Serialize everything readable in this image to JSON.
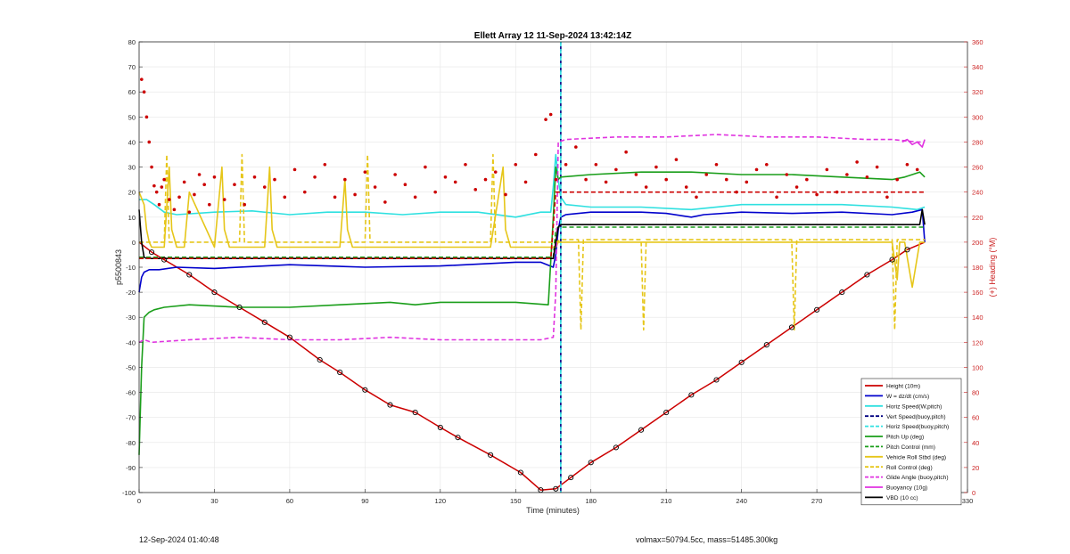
{
  "chart_data": {
    "type": "line",
    "title": "Ellett Array 12 11-Sep-2024 13:42:14Z",
    "xlabel": "Time (minutes)",
    "ylabel": "p5500843",
    "y2label": "(+) Heading (°M)",
    "xlim": [
      0,
      330
    ],
    "ylim": [
      -100,
      80
    ],
    "y2lim": [
      0,
      360
    ],
    "xticks": [
      0,
      30,
      60,
      90,
      120,
      150,
      180,
      210,
      240,
      270,
      300,
      330
    ],
    "yticks": [
      -100,
      -90,
      -80,
      -70,
      -60,
      -50,
      -40,
      -30,
      -20,
      -10,
      0,
      10,
      20,
      30,
      40,
      50,
      60,
      70,
      80
    ],
    "y2ticks": [
      0,
      20,
      40,
      60,
      80,
      100,
      120,
      140,
      160,
      180,
      200,
      220,
      240,
      260,
      280,
      300,
      320,
      340,
      360
    ],
    "grid": true,
    "legend_position": "bottom-right",
    "colors": {
      "red": "#cc0000",
      "blue": "#0000cc",
      "cyan": "#2fe0e0",
      "navy": "#000080",
      "green": "#1a9e1a",
      "yellow": "#e6c619",
      "magenta": "#e033e0",
      "black": "#000000",
      "right_axis": "#cc2222"
    },
    "series": [
      {
        "name": "Height (10m)",
        "color": "#cc0000",
        "style": "solid",
        "axis": "left",
        "x": [
          0,
          5,
          10,
          20,
          30,
          40,
          50,
          60,
          72,
          80,
          90,
          100,
          110,
          120,
          127,
          140,
          152,
          160,
          166,
          172,
          180,
          190,
          200,
          210,
          220,
          230,
          240,
          250,
          260,
          270,
          280,
          290,
          300,
          306,
          313
        ],
        "y": [
          0,
          -4,
          -7,
          -13,
          -20,
          -26,
          -32,
          -38,
          -47,
          -52,
          -59,
          -65,
          -68,
          -74,
          -78,
          -85,
          -92,
          -99,
          -98.5,
          -94,
          -88,
          -82,
          -75,
          -68,
          -61,
          -55,
          -48,
          -41,
          -34,
          -27,
          -20,
          -13,
          -7,
          -3,
          0
        ]
      },
      {
        "name": "W = dz/dt (cm/s)",
        "color": "#0000cc",
        "style": "solid",
        "axis": "left",
        "x": [
          0,
          1,
          2,
          4,
          8,
          15,
          30,
          60,
          90,
          120,
          150,
          160,
          165,
          166,
          167,
          168,
          170,
          180,
          200,
          210,
          220,
          225,
          240,
          260,
          280,
          300,
          308,
          312,
          313
        ],
        "y": [
          -20,
          -14,
          -12,
          -11,
          -11,
          -10,
          -10.5,
          -9,
          -10,
          -9.5,
          -8,
          -8,
          -10,
          -5,
          5,
          10,
          11,
          12,
          12,
          11.5,
          10,
          11,
          12,
          11.5,
          12,
          11,
          12,
          13,
          0
        ]
      },
      {
        "name": "Horiz Speed(W,pitch)",
        "color": "#2fe0e0",
        "style": "solid",
        "axis": "left",
        "x": [
          0,
          3,
          6,
          10,
          15,
          30,
          45,
          60,
          75,
          90,
          105,
          120,
          135,
          150,
          160,
          164,
          165,
          166,
          167,
          168,
          170,
          180,
          200,
          220,
          240,
          260,
          280,
          300,
          310,
          313
        ],
        "y": [
          17,
          17,
          15,
          12,
          11,
          12,
          12.5,
          11,
          12,
          12,
          11,
          12,
          12,
          10,
          12,
          12,
          22,
          35,
          25,
          18,
          15,
          14,
          14,
          13,
          15,
          15,
          15,
          14,
          13,
          14
        ]
      },
      {
        "name": "Vert Speed(buoy,pitch)",
        "color": "#000080",
        "style": "dashed",
        "axis": "left",
        "x": [
          168,
          168
        ],
        "y": [
          -100,
          80
        ]
      },
      {
        "name": "Horiz Speed(buoy,pitch)",
        "color": "#2fe0e0",
        "style": "dashed",
        "axis": "left",
        "x": [
          168,
          168
        ],
        "y": [
          80,
          -100
        ]
      },
      {
        "name": "Pitch Up (deg)",
        "color": "#1a9e1a",
        "style": "solid",
        "axis": "left",
        "x": [
          0,
          1,
          2,
          4,
          6,
          10,
          20,
          40,
          60,
          80,
          100,
          110,
          120,
          150,
          163,
          165,
          166,
          167,
          168,
          180,
          200,
          220,
          240,
          260,
          280,
          300,
          305,
          311,
          313
        ],
        "y": [
          -85,
          -50,
          -30,
          -28,
          -27,
          -26,
          -25,
          -26,
          -26,
          -25,
          -24,
          -25,
          -24,
          -24,
          -25,
          10,
          30,
          25,
          26,
          27,
          28,
          28,
          27,
          27,
          26,
          25,
          26,
          28,
          26
        ]
      },
      {
        "name": "Pitch Control (mm)",
        "color": "#1a9e1a",
        "style": "dashed",
        "axis": "left",
        "x": [
          0,
          165,
          166,
          167,
          200,
          240,
          270,
          313
        ],
        "y": [
          -6,
          -6,
          5,
          6,
          6,
          6,
          6,
          6
        ]
      },
      {
        "name": "Vehicle Roll Stbd (deg)",
        "color": "#e6c619",
        "style": "solid",
        "axis": "left",
        "x": [
          0,
          2,
          3,
          4,
          5,
          10,
          12,
          13,
          15,
          18,
          20,
          30,
          33,
          34,
          36,
          40,
          50,
          52,
          53,
          55,
          60,
          80,
          82,
          83,
          85,
          90,
          120,
          140,
          145,
          146,
          148,
          150,
          166,
          167,
          170,
          180,
          190,
          200,
          210,
          230,
          250,
          270,
          290,
          300,
          302,
          303,
          305,
          308,
          311,
          313
        ],
        "y": [
          20,
          15,
          5,
          0,
          -2,
          -2,
          30,
          5,
          -2,
          -2,
          20,
          -2,
          30,
          5,
          -2,
          -2,
          -2,
          30,
          5,
          -2,
          -2,
          -2,
          25,
          5,
          -2,
          -2,
          -2,
          -2,
          30,
          5,
          -2,
          -2,
          -2,
          0,
          0,
          0,
          0,
          0,
          0,
          0,
          0,
          0,
          0,
          0,
          -15,
          0,
          0,
          -18,
          0,
          0
        ]
      },
      {
        "name": "Roll Control (deg)",
        "color": "#e6c619",
        "style": "dashed",
        "axis": "left",
        "x": [
          0,
          10,
          11,
          12,
          40,
          41,
          42,
          90,
          91,
          92,
          140,
          141,
          142,
          166,
          168,
          175,
          176,
          177,
          200,
          201,
          202,
          260,
          261,
          262,
          300,
          301,
          302,
          313
        ],
        "y": [
          0,
          0,
          35,
          0,
          0,
          35,
          0,
          0,
          35,
          0,
          0,
          35,
          0,
          0,
          1,
          1,
          -35,
          1,
          1,
          -35,
          1,
          1,
          -35,
          1,
          1,
          -35,
          1,
          1
        ]
      },
      {
        "name": "Glide Angle (buoy,pitch)",
        "color": "#e033e0",
        "style": "dashed",
        "axis": "left",
        "x": [
          0,
          2,
          5,
          20,
          40,
          60,
          80,
          100,
          120,
          140,
          160,
          165,
          166,
          167,
          170,
          190,
          210,
          230,
          250,
          270,
          290,
          300,
          310,
          313
        ],
        "y": [
          -40,
          -39,
          -40,
          -39,
          -38,
          -39,
          -39,
          -38,
          -39,
          -39,
          -39,
          -38,
          -20,
          40,
          41,
          42,
          42,
          43,
          42,
          42,
          41,
          41,
          40,
          40
        ]
      },
      {
        "name": "Buoyancy (10g)",
        "color": "#e033e0",
        "style": "solid",
        "axis": "left",
        "x": [
          304,
          306,
          308,
          310,
          312,
          313
        ],
        "y": [
          40,
          41,
          39,
          40,
          38,
          41
        ]
      },
      {
        "name": "VBD (10 cc)",
        "color": "#000000",
        "style": "solid",
        "axis": "left",
        "x": [
          0,
          1,
          2,
          3,
          165,
          166,
          167,
          168,
          311,
          312,
          313
        ],
        "y": [
          13,
          0,
          -6,
          -6.5,
          -6.5,
          0,
          6,
          7,
          7,
          13,
          7
        ]
      },
      {
        "name": "Heading",
        "color": "#cc0000",
        "style": "dashed",
        "axis": "right",
        "in_legend": false,
        "x": [
          0,
          164,
          166,
          313
        ],
        "y": [
          187,
          187,
          240,
          240
        ]
      }
    ],
    "heading_points": {
      "x": [
        1,
        2,
        3,
        4,
        5,
        6,
        7,
        8,
        9,
        10,
        12,
        14,
        16,
        18,
        20,
        22,
        24,
        26,
        28,
        30,
        34,
        38,
        42,
        46,
        50,
        54,
        58,
        62,
        66,
        70,
        74,
        78,
        82,
        86,
        90,
        94,
        98,
        102,
        106,
        110,
        114,
        118,
        122,
        126,
        130,
        134,
        138,
        142,
        146,
        150,
        154,
        158,
        162,
        164,
        166,
        170,
        174,
        178,
        182,
        186,
        190,
        194,
        198,
        202,
        206,
        210,
        214,
        218,
        222,
        226,
        230,
        234,
        238,
        242,
        246,
        250,
        254,
        258,
        262,
        266,
        270,
        274,
        278,
        282,
        286,
        290,
        294,
        298,
        302,
        306,
        310
      ],
      "y": [
        330,
        320,
        300,
        280,
        260,
        245,
        240,
        230,
        244,
        250,
        234,
        226,
        236,
        248,
        224,
        238,
        254,
        246,
        230,
        252,
        234,
        246,
        230,
        252,
        244,
        250,
        236,
        258,
        240,
        252,
        262,
        236,
        250,
        238,
        256,
        244,
        232,
        254,
        246,
        236,
        260,
        240,
        252,
        248,
        262,
        242,
        250,
        256,
        238,
        262,
        248,
        270,
        298,
        302,
        250,
        262,
        276,
        250,
        262,
        248,
        258,
        272,
        254,
        244,
        260,
        250,
        266,
        244,
        236,
        254,
        262,
        250,
        240,
        248,
        258,
        262,
        236,
        254,
        244,
        250,
        238,
        258,
        240,
        254,
        264,
        252,
        260,
        236,
        250,
        262,
        258
      ]
    },
    "annotations": [
      "12-Sep-2024 01:40:48",
      "volmax=50794.5cc, mass=51485.300kg"
    ]
  },
  "footer": {
    "date": "12-Sep-2024 01:40:48",
    "info": "volmax=50794.5cc, mass=51485.300kg"
  }
}
